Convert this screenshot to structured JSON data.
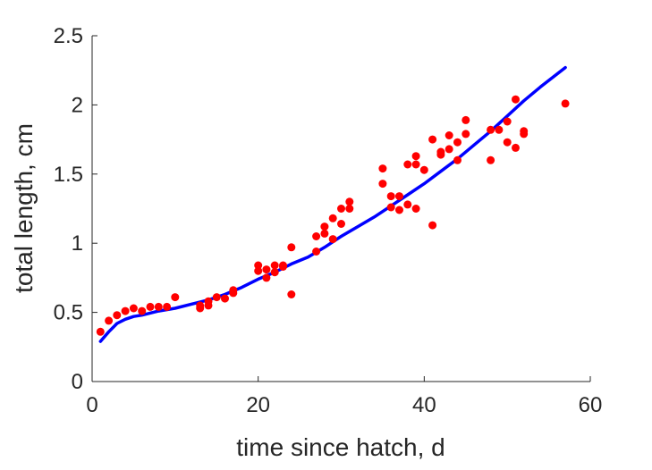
{
  "chart_data": {
    "type": "scatter",
    "xlabel": "time since hatch, d",
    "ylabel": "total length, cm",
    "xlim": [
      0,
      60
    ],
    "ylim": [
      0,
      2.5
    ],
    "x_ticks": [
      0,
      20,
      40,
      60
    ],
    "y_ticks": [
      0,
      0.5,
      1,
      1.5,
      2,
      2.5
    ],
    "x_tick_labels": [
      "0",
      "20",
      "40",
      "60"
    ],
    "y_tick_labels": [
      "0",
      "0.5",
      "1",
      "1.5",
      "2",
      "2.5"
    ],
    "grid": false,
    "legend": "none",
    "series": [
      {
        "kind": "scatter",
        "color": "#ff0000",
        "x": [
          1,
          2,
          3,
          4,
          5,
          6,
          7,
          8,
          9,
          10,
          13,
          13,
          14,
          14,
          15,
          16,
          17,
          17,
          20,
          20,
          21,
          21,
          22,
          22,
          23,
          23,
          24,
          24,
          27,
          27,
          28,
          28,
          29,
          29,
          30,
          30,
          31,
          31,
          35,
          35,
          36,
          36,
          37,
          37,
          38,
          38,
          39,
          39,
          39,
          40,
          41,
          41,
          42,
          42,
          43,
          43,
          44,
          44,
          45,
          45,
          48,
          48,
          49,
          50,
          50,
          51,
          51,
          52,
          52,
          57
        ],
        "y": [
          0.36,
          0.44,
          0.48,
          0.51,
          0.53,
          0.51,
          0.54,
          0.54,
          0.54,
          0.61,
          0.53,
          0.55,
          0.55,
          0.58,
          0.61,
          0.6,
          0.64,
          0.66,
          0.8,
          0.84,
          0.75,
          0.81,
          0.79,
          0.84,
          0.83,
          0.84,
          0.63,
          0.97,
          0.94,
          1.05,
          1.07,
          1.12,
          1.03,
          1.18,
          1.14,
          1.25,
          1.25,
          1.3,
          1.43,
          1.54,
          1.26,
          1.34,
          1.24,
          1.34,
          1.28,
          1.57,
          1.25,
          1.57,
          1.63,
          1.53,
          1.13,
          1.75,
          1.64,
          1.66,
          1.68,
          1.78,
          1.6,
          1.73,
          1.79,
          1.89,
          1.6,
          1.82,
          1.82,
          1.73,
          1.88,
          1.69,
          2.04,
          1.79,
          1.81,
          2.01
        ]
      },
      {
        "kind": "line",
        "color": "#0000ff",
        "x": [
          1,
          2,
          3,
          4,
          5,
          6,
          8,
          10,
          12,
          14,
          16,
          18,
          20,
          22,
          24,
          26,
          28,
          30,
          32,
          34,
          36,
          38,
          40,
          42,
          44,
          46,
          48,
          50,
          52,
          54,
          57
        ],
        "y": [
          0.29,
          0.36,
          0.42,
          0.45,
          0.47,
          0.48,
          0.51,
          0.53,
          0.56,
          0.59,
          0.63,
          0.68,
          0.74,
          0.79,
          0.85,
          0.9,
          0.97,
          1.05,
          1.12,
          1.19,
          1.27,
          1.35,
          1.43,
          1.52,
          1.61,
          1.71,
          1.81,
          1.92,
          2.03,
          2.13,
          2.27
        ]
      }
    ]
  }
}
